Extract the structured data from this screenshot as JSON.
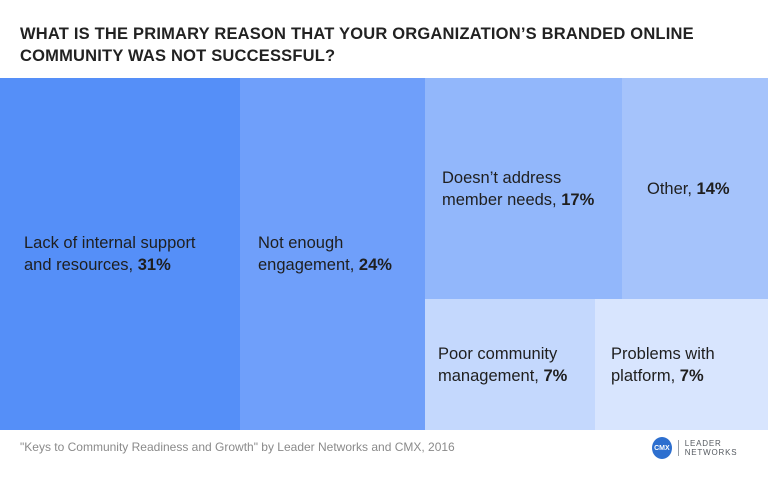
{
  "title_lines": [
    "WHAT IS THE PRIMARY REASON THAT YOUR ORGANIZATION’S BRANDED ONLINE",
    "COMMUNITY WAS NOT SUCCESSFUL?"
  ],
  "chart_data": {
    "type": "treemap",
    "title": "WHAT IS THE PRIMARY REASON THAT YOUR ORGANIZATION’S BRANDED ONLINE COMMUNITY WAS NOT SUCCESSFUL?",
    "items": [
      {
        "label": "Lack of internal support and resources",
        "value": 31,
        "value_label": "31%",
        "color": "#558ff8",
        "label_lines": [
          "Lack of internal support",
          "and resources, "
        ]
      },
      {
        "label": "Not enough engagement",
        "value": 24,
        "value_label": "24%",
        "color": "#6f9ffa",
        "label_lines": [
          "Not enough",
          "engagement, "
        ]
      },
      {
        "label": "Doesn’t address member needs",
        "value": 17,
        "value_label": "17%",
        "color": "#92b7fb",
        "label_lines": [
          "Doesn’t address",
          "member needs, "
        ]
      },
      {
        "label": "Other",
        "value": 14,
        "value_label": "14%",
        "color": "#a5c3fb",
        "label_lines": [
          "Other, "
        ]
      },
      {
        "label": "Poor community management",
        "value": 7,
        "value_label": "7%",
        "color": "#c4d8fd",
        "label_lines": [
          "Poor community",
          "management, "
        ]
      },
      {
        "label": "Problems with platform",
        "value": 7,
        "value_label": "7%",
        "color": "#d8e5fe",
        "label_lines": [
          "Problems with",
          "platform, "
        ]
      }
    ]
  },
  "source": "\"Keys to Community Readiness and Growth\" by Leader Networks and CMX, 2016",
  "logo": {
    "badge": "CMX",
    "text": "LEADER NETWORKS",
    "color": "#2d6fcf"
  }
}
